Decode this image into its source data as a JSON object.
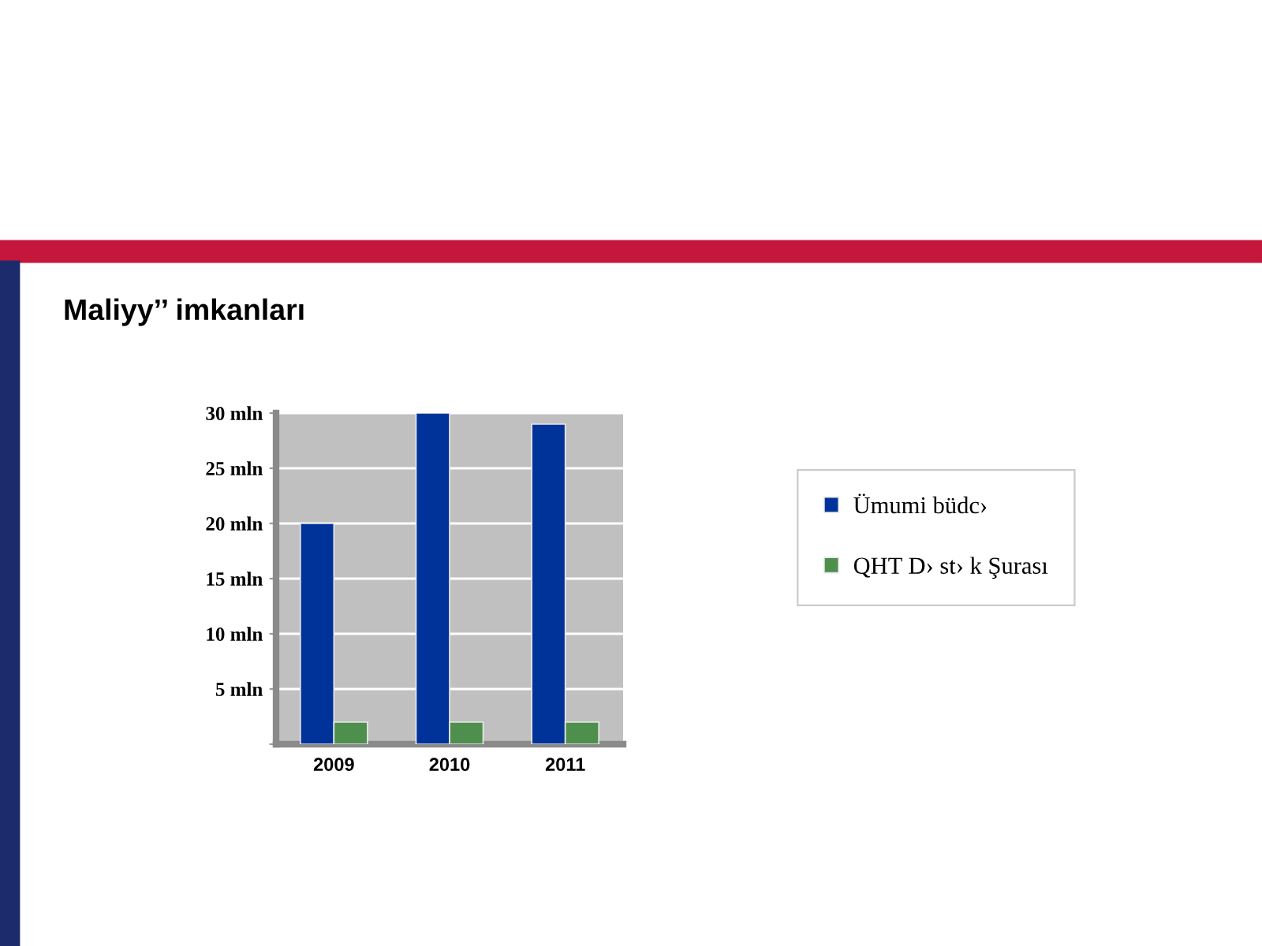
{
  "chart_data": {
    "type": "bar",
    "title": "Maliyy’’ imkanları",
    "categories": [
      "2009",
      "2010",
      "2011"
    ],
    "series": [
      {
        "name": "Ümumi büdc›",
        "color": "#003399",
        "values": [
          20,
          30,
          29
        ]
      },
      {
        "name": "QHT D› st› k Şurası",
        "color": "#4e8f4e",
        "values": [
          2,
          2,
          2
        ]
      }
    ],
    "ylim": [
      0,
      30
    ],
    "yticks": [
      {
        "value": 0,
        "label": null
      },
      {
        "value": 5,
        "label": "5 mln"
      },
      {
        "value": 10,
        "label": "10 mln"
      },
      {
        "value": 15,
        "label": "15 mln"
      },
      {
        "value": 20,
        "label": "20 mln"
      },
      {
        "value": 25,
        "label": "25 mln"
      },
      {
        "value": 30,
        "label": "30 mln"
      }
    ],
    "grid": "y",
    "legend": "right"
  }
}
